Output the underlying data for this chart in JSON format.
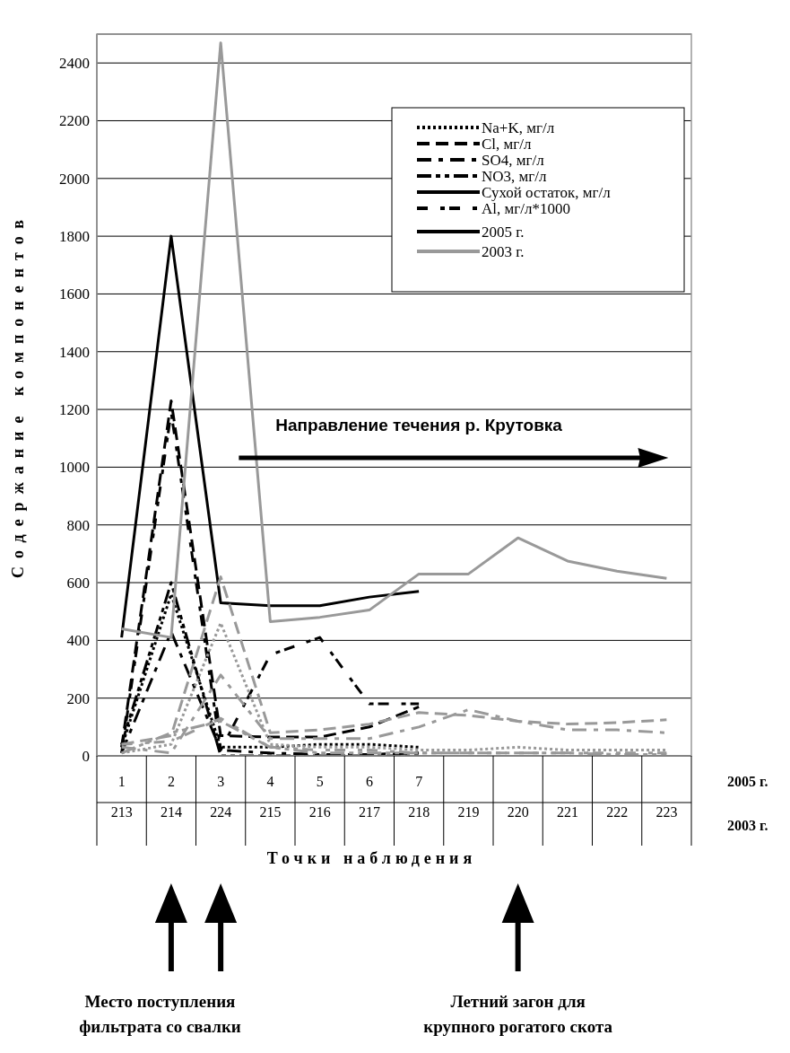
{
  "chart_data": {
    "type": "line",
    "ylabel": "Содержание компонентов",
    "xlabel": "Точки наблюдения",
    "categories": [
      "213",
      "214",
      "224",
      "215",
      "216",
      "217",
      "218",
      "219",
      "220",
      "221",
      "222",
      "223"
    ],
    "ylim": [
      0,
      2500
    ],
    "yticks": [
      0,
      200,
      400,
      600,
      800,
      1000,
      1200,
      1400,
      1600,
      1800,
      2000,
      2200,
      2400
    ],
    "grid": "y",
    "legend": "top right",
    "series": [
      {
        "name": "Na+K, мг/л",
        "color": "#000000",
        "line_style": "dotted",
        "values": [
          30,
          560,
          30,
          30,
          40,
          40,
          30,
          null,
          null,
          null,
          null,
          null
        ]
      },
      {
        "name": "Cl, мг/л",
        "color": "#000000",
        "line_style": "dashed",
        "values": [
          30,
          1230,
          70,
          65,
          65,
          100,
          170,
          null,
          null,
          null,
          null,
          null
        ]
      },
      {
        "name": "SO4, мг/л",
        "color": "#000000",
        "line_style": "dashdot",
        "values": [
          10,
          430,
          20,
          10,
          5,
          5,
          10,
          null,
          null,
          null,
          null,
          null
        ]
      },
      {
        "name": "NO3, мг/л",
        "color": "#000000",
        "line_style": "dashdotdot",
        "values": [
          40,
          600,
          0,
          0,
          0,
          0,
          0,
          null,
          null,
          null,
          null,
          null
        ]
      },
      {
        "name": "Сухой остаток, мг/л",
        "color": "#000000",
        "line_style": "solid",
        "values": [
          410,
          1800,
          530,
          520,
          520,
          550,
          570,
          null,
          null,
          null,
          null,
          null
        ]
      },
      {
        "name": "Al, мг/л*1000",
        "color": "#000000",
        "line_style": "longdash",
        "values": [
          10,
          1190,
          20,
          350,
          410,
          180,
          180,
          null,
          null,
          null,
          null,
          null
        ]
      },
      {
        "color": "#999999",
        "line_style": "dotted",
        "values": [
          10,
          40,
          460,
          40,
          30,
          30,
          20,
          20,
          30,
          20,
          20,
          20
        ]
      },
      {
        "color": "#999999",
        "line_style": "dashed",
        "values": [
          40,
          70,
          620,
          80,
          90,
          110,
          150,
          140,
          120,
          110,
          115,
          125
        ]
      },
      {
        "color": "#999999",
        "line_style": "dashdot",
        "values": [
          30,
          10,
          280,
          60,
          60,
          60,
          100,
          160,
          120,
          90,
          90,
          80
        ]
      },
      {
        "color": "#999999",
        "line_style": "dashdotdot",
        "values": [
          10,
          80,
          120,
          30,
          10,
          10,
          10,
          10,
          10,
          10,
          5,
          5
        ]
      },
      {
        "color": "#999999",
        "line_style": "solid",
        "values": [
          440,
          410,
          2470,
          465,
          480,
          505,
          630,
          630,
          755,
          675,
          640,
          615
        ]
      },
      {
        "color": "#999999",
        "line_style": "longdash",
        "values": [
          40,
          50,
          130,
          30,
          20,
          20,
          10,
          10,
          10,
          10,
          10,
          10
        ]
      }
    ],
    "annotations": [
      "Направление течения р. Крутовка",
      "Место поступления фильтрата со свалки",
      "Летний загон для крупного рогатого скота",
      "2005 г.",
      "2003 г.",
      "2005 г.",
      "2003 г.",
      "1",
      "2",
      "3",
      "4",
      "5",
      "6",
      "7"
    ]
  }
}
